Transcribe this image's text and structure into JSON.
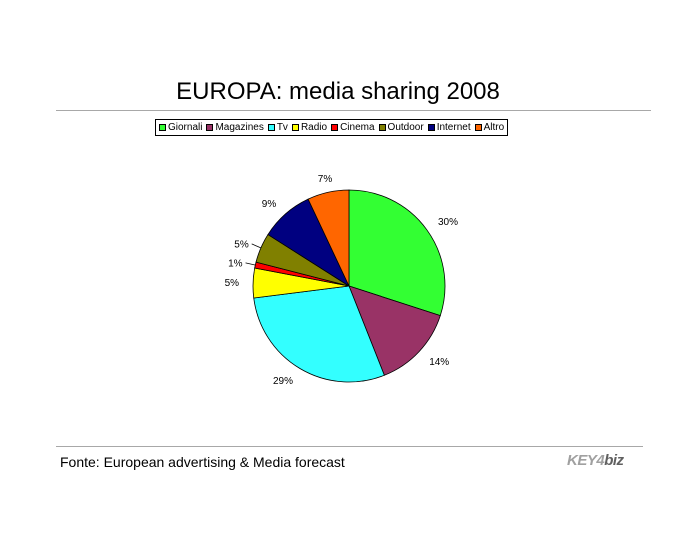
{
  "title": "EUROPA: media sharing 2008",
  "source": "Fonte: European advertising & Media forecast",
  "logo": {
    "part1": "KEY4",
    "part2": "biz"
  },
  "chart_data": {
    "type": "pie",
    "title": "EUROPA: media sharing 2008",
    "legend_position": "top",
    "slices": [
      {
        "name": "Giornali",
        "value": 30,
        "label": "30%",
        "color": "#33ff33"
      },
      {
        "name": "Magazines",
        "value": 14,
        "label": "14%",
        "color": "#993366"
      },
      {
        "name": "Tv",
        "value": 29,
        "label": "29%",
        "color": "#33ffff"
      },
      {
        "name": "Radio",
        "value": 5,
        "label": "5%",
        "color": "#ffff00"
      },
      {
        "name": "Cinema",
        "value": 1,
        "label": "1%",
        "color": "#ff0000"
      },
      {
        "name": "Outdoor",
        "value": 5,
        "label": "5%",
        "color": "#808000"
      },
      {
        "name": "Internet",
        "value": 9,
        "label": "9%",
        "color": "#000080"
      },
      {
        "name": "Altro",
        "value": 7,
        "label": "7%",
        "color": "#ff6600"
      }
    ]
  }
}
